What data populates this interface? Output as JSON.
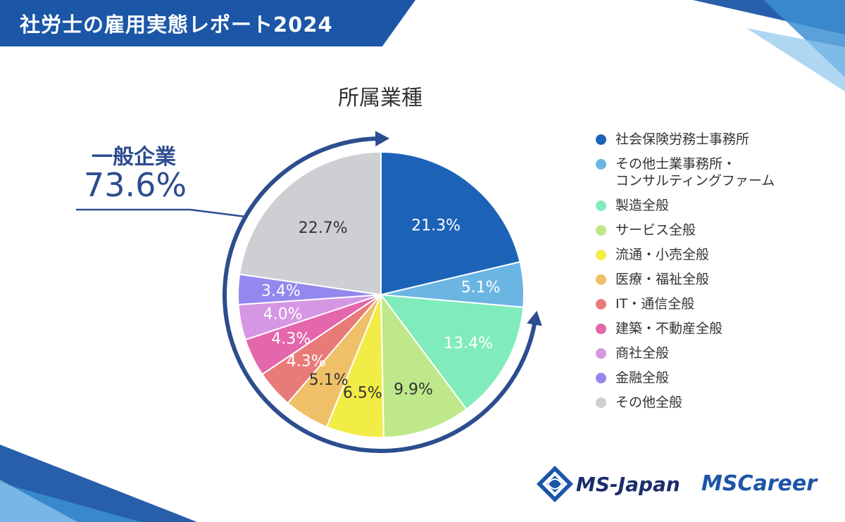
{
  "header": {
    "title": "社労士の雇用実態レポート2024"
  },
  "colors": {
    "banner": "#1b56a7",
    "arrow": "#2c4d8f"
  },
  "callout": {
    "label": "一般企業",
    "value": "73.6%"
  },
  "chart_data": {
    "type": "pie",
    "title": "所属業種",
    "categories": [
      "社会保険労務士事務所",
      "その他士業事務所・コンサルティングファーム",
      "製造全般",
      "サービス全般",
      "流通・小売全般",
      "医療・福祉全般",
      "IT・通信全般",
      "建築・不動産全般",
      "商社全般",
      "金融全般",
      "その他全般"
    ],
    "values": [
      21.3,
      5.1,
      13.4,
      9.9,
      6.5,
      5.1,
      4.3,
      4.3,
      4.0,
      3.4,
      22.7
    ],
    "labels": [
      "21.3%",
      "5.1%",
      "13.4%",
      "9.9%",
      "6.5%",
      "5.1%",
      "4.3%",
      "4.3%",
      "4.0%",
      "3.4%",
      "22.7%"
    ],
    "colors": [
      "#1c63b7",
      "#6bb5e3",
      "#80ecbb",
      "#bfe88a",
      "#f2ec47",
      "#efc067",
      "#e87b79",
      "#e466ab",
      "#d597e3",
      "#9488ee",
      "#cdcfd3"
    ],
    "label_colors": [
      "#ffffff",
      "#ffffff",
      "#ffffff",
      "#333333",
      "#333333",
      "#333333",
      "#ffffff",
      "#ffffff",
      "#ffffff",
      "#ffffff",
      "#333333"
    ],
    "legend_position": "right"
  },
  "legend": {
    "items": [
      {
        "lines": [
          "社会保険労務士事務所"
        ]
      },
      {
        "lines": [
          "その他士業事務所・",
          "コンサルティングファーム"
        ]
      },
      {
        "lines": [
          "製造全般"
        ]
      },
      {
        "lines": [
          "サービス全般"
        ]
      },
      {
        "lines": [
          "流通・小売全般"
        ]
      },
      {
        "lines": [
          "医療・福祉全般"
        ]
      },
      {
        "lines": [
          "IT・通信全般"
        ]
      },
      {
        "lines": [
          "建築・不動産全般"
        ]
      },
      {
        "lines": [
          "商社全般"
        ]
      },
      {
        "lines": [
          "金融全般"
        ]
      },
      {
        "lines": [
          "その他全般"
        ]
      }
    ]
  },
  "logos": {
    "msjapan": "MS-Japan",
    "mscareer": "MSCareer"
  }
}
